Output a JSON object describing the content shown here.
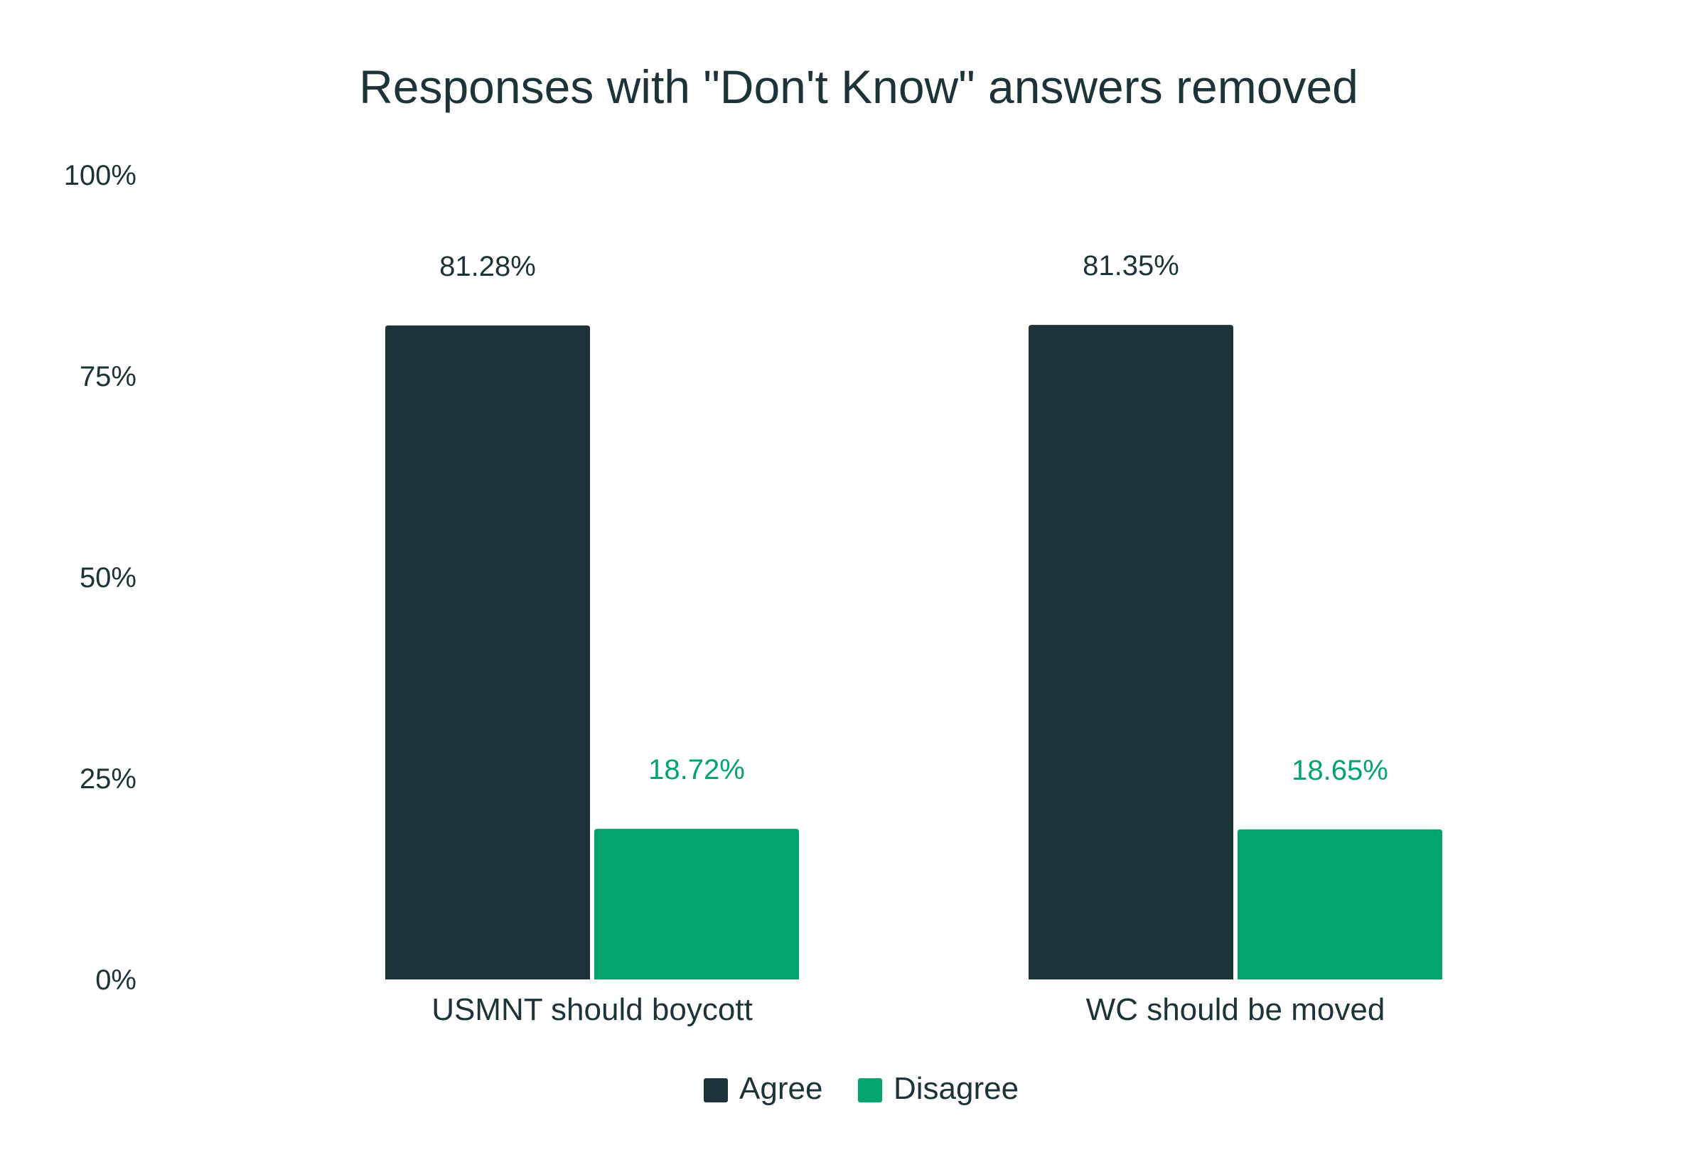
{
  "chart_data": {
    "type": "bar",
    "title": "Responses with \"Don't Know\" answers removed",
    "xlabel": "",
    "ylabel": "",
    "categories": [
      "USMNT should boycott",
      "WC should be moved"
    ],
    "series": [
      {
        "name": "Agree",
        "color": "#1d333a",
        "values": [
          81.28,
          81.35
        ],
        "labels": [
          "81.28%",
          "81.35%"
        ]
      },
      {
        "name": "Disagree",
        "color": "#02a46b",
        "values": [
          18.72,
          18.65
        ],
        "labels": [
          "18.72%",
          "18.65%"
        ]
      }
    ],
    "ylim": [
      0,
      100
    ],
    "yticks": [
      0,
      25,
      50,
      75,
      100
    ],
    "ytick_labels": [
      "0%",
      "25%",
      "50%",
      "75%",
      "100%"
    ],
    "grid": false,
    "legend": "bottom-center"
  }
}
